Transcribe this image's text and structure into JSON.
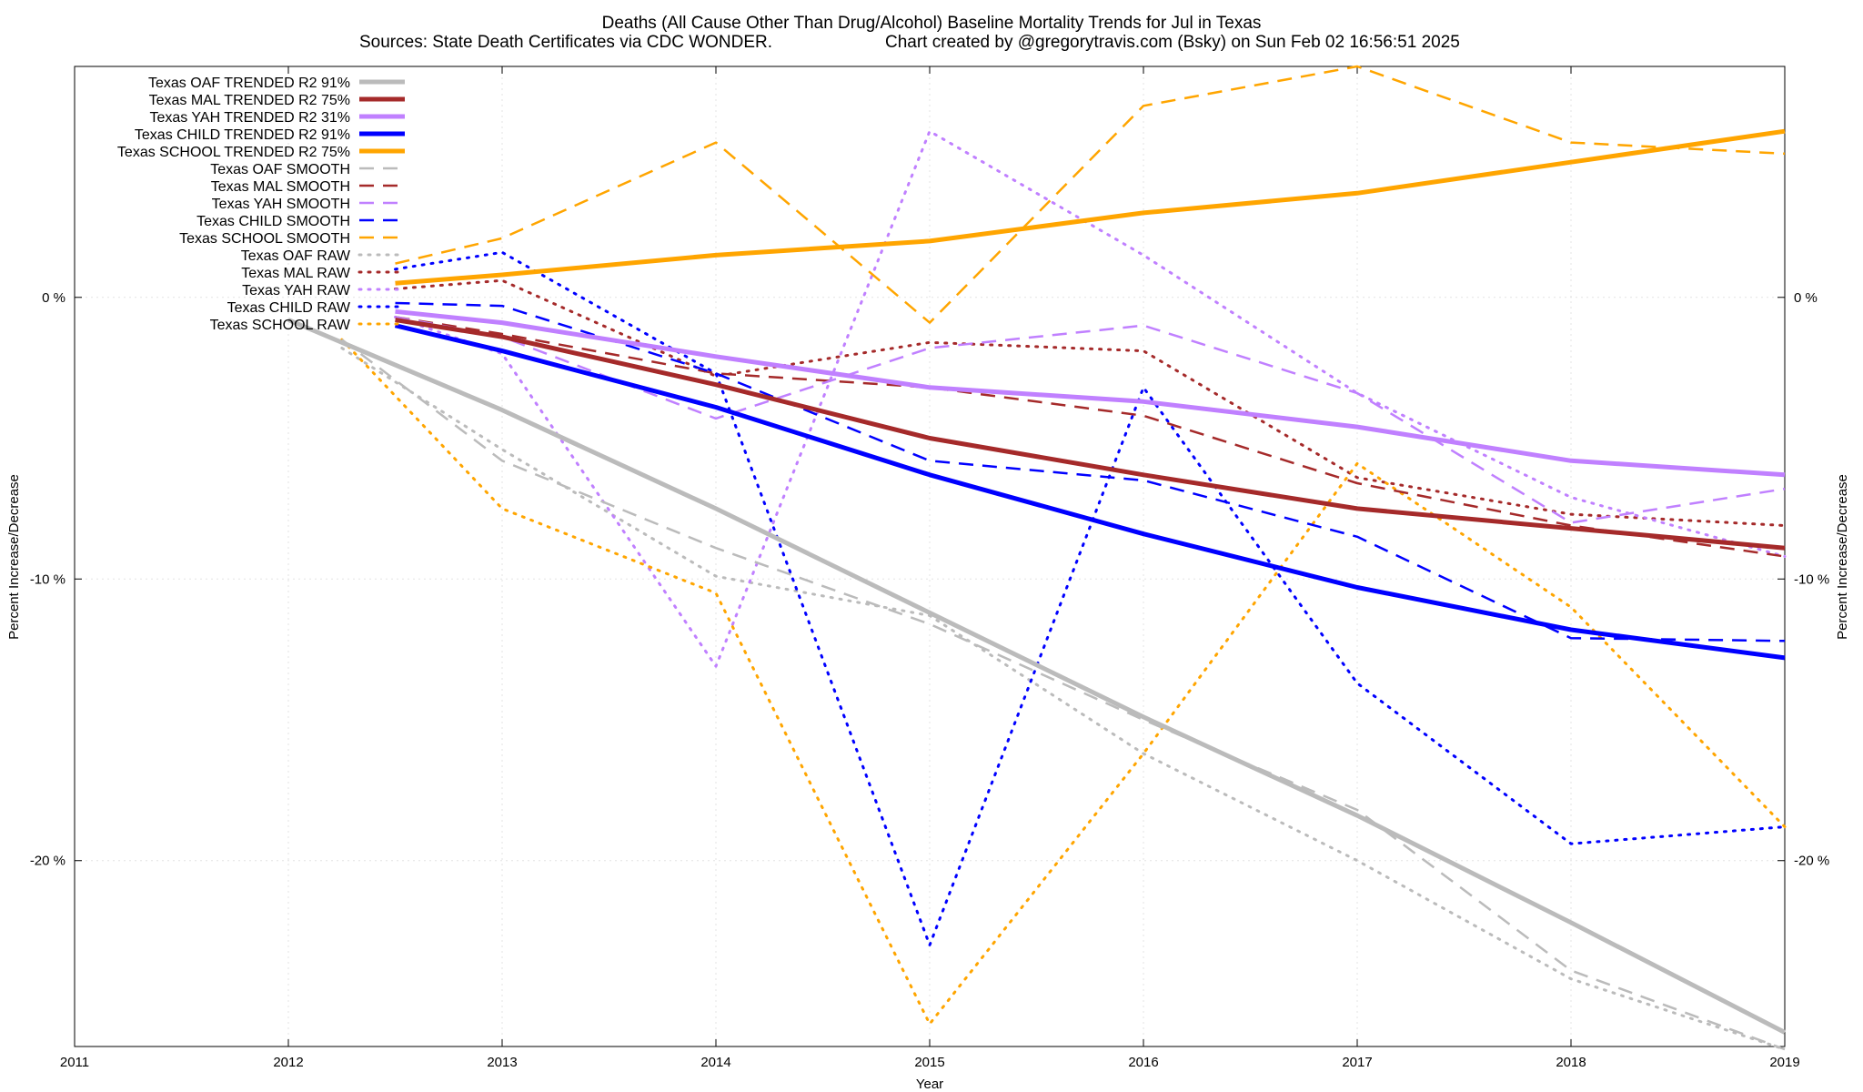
{
  "chart_data": {
    "type": "line",
    "title": "Deaths (All Cause Other Than Drug/Alcohol)  Baseline Mortality Trends for Jul in Texas",
    "subtitle_left": "Sources: State Death Certificates via CDC WONDER.",
    "subtitle_right": "Chart created by @gregorytravis.com (Bsky) on Sun Feb 02 16:56:51 2025",
    "xlabel": "Year",
    "ylabel_left": "Percent Increase/Decrease",
    "ylabel_right": "Percent Increase/Decrease",
    "xlim": [
      2011,
      2019
    ],
    "ylim": [
      -26.6,
      8.2
    ],
    "x_ticks": [
      2011,
      2012,
      2013,
      2014,
      2015,
      2016,
      2017,
      2018,
      2019
    ],
    "x_tick_labels": [
      "2011",
      "2012",
      "2013",
      "2014",
      "2015",
      "2016",
      "2017",
      "2018",
      "2019"
    ],
    "y_ticks": [
      0,
      -10,
      -20
    ],
    "y_tick_labels": [
      "0 %",
      "-10 %",
      "-20 %"
    ],
    "grid": true,
    "legend_position": "top-left",
    "colors": {
      "OAF": "#bbbbbb",
      "MAL": "#a52a2a",
      "YAH": "#c080ff",
      "CHILD": "#0000ff",
      "SCHOOL": "#ffa500"
    },
    "series": [
      {
        "name": "Texas OAF TRENDED R2  91%",
        "group": "OAF",
        "style": "trend",
        "x": [
          2012,
          2013,
          2014,
          2015,
          2016,
          2017,
          2018,
          2019
        ],
        "y": [
          -0.8,
          -4.0,
          -7.5,
          -11.2,
          -14.9,
          -18.4,
          -22.2,
          -26.1
        ]
      },
      {
        "name": "Texas MAL TRENDED R2  75%",
        "group": "MAL",
        "style": "trend",
        "x": [
          2012.5,
          2013,
          2014,
          2015,
          2016,
          2017,
          2018,
          2019
        ],
        "y": [
          -0.8,
          -1.4,
          -3.1,
          -5.0,
          -6.3,
          -7.5,
          -8.2,
          -8.9
        ]
      },
      {
        "name": "Texas YAH TRENDED R2  31%",
        "group": "YAH",
        "style": "trend",
        "x": [
          2012.5,
          2013,
          2014,
          2015,
          2016,
          2017,
          2018,
          2019
        ],
        "y": [
          -0.5,
          -0.9,
          -2.1,
          -3.2,
          -3.7,
          -4.6,
          -5.8,
          -6.3
        ]
      },
      {
        "name": "Texas CHILD TRENDED R2  91%",
        "group": "CHILD",
        "style": "trend",
        "x": [
          2012.5,
          2013,
          2014,
          2015,
          2016,
          2017,
          2018,
          2019
        ],
        "y": [
          -1.0,
          -1.9,
          -3.9,
          -6.3,
          -8.4,
          -10.3,
          -11.8,
          -12.8
        ]
      },
      {
        "name": "Texas SCHOOL TRENDED R2  75%",
        "group": "SCHOOL",
        "style": "trend",
        "x": [
          2012.5,
          2013,
          2014,
          2015,
          2016,
          2017,
          2018,
          2019
        ],
        "y": [
          0.5,
          0.8,
          1.5,
          2.0,
          3.0,
          3.7,
          4.8,
          5.9
        ]
      },
      {
        "name": "Texas OAF SMOOTH",
        "group": "OAF",
        "style": "smooth",
        "x": [
          2012.25,
          2013,
          2014,
          2015,
          2016,
          2017,
          2018,
          2019
        ],
        "y": [
          -1.5,
          -5.8,
          -8.9,
          -11.6,
          -15.0,
          -18.2,
          -23.9,
          -26.7
        ]
      },
      {
        "name": "Texas MAL SMOOTH",
        "group": "MAL",
        "style": "smooth",
        "x": [
          2012.5,
          2013,
          2014,
          2015,
          2016,
          2017,
          2018,
          2019
        ],
        "y": [
          -0.7,
          -1.3,
          -2.7,
          -3.2,
          -4.2,
          -6.6,
          -8.1,
          -9.2
        ]
      },
      {
        "name": "Texas YAH SMOOTH",
        "group": "YAH",
        "style": "smooth",
        "x": [
          2012.5,
          2013,
          2014,
          2015,
          2016,
          2017,
          2018,
          2019
        ],
        "y": [
          -0.7,
          -1.4,
          -4.3,
          -1.8,
          -1.0,
          -3.4,
          -8.0,
          -6.8
        ]
      },
      {
        "name": "Texas CHILD SMOOTH",
        "group": "CHILD",
        "style": "smooth",
        "x": [
          2012.5,
          2013,
          2014,
          2015,
          2016,
          2017,
          2018,
          2019
        ],
        "y": [
          -0.2,
          -0.3,
          -2.7,
          -5.8,
          -6.5,
          -8.5,
          -12.1,
          -12.2
        ]
      },
      {
        "name": "Texas SCHOOL SMOOTH",
        "group": "SCHOOL",
        "style": "smooth",
        "x": [
          2012.5,
          2013,
          2014,
          2015,
          2016,
          2017,
          2018,
          2019
        ],
        "y": [
          1.2,
          2.1,
          5.5,
          -0.9,
          6.8,
          8.2,
          5.5,
          5.1
        ]
      },
      {
        "name": "Texas OAF RAW",
        "group": "OAF",
        "style": "raw",
        "x": [
          2012.25,
          2013,
          2014,
          2015,
          2016,
          2017,
          2018,
          2019
        ],
        "y": [
          -1.8,
          -5.4,
          -9.9,
          -11.3,
          -16.2,
          -20.0,
          -24.2,
          -26.7
        ]
      },
      {
        "name": "Texas MAL RAW",
        "group": "MAL",
        "style": "raw",
        "x": [
          2012.5,
          2013,
          2014,
          2015,
          2016,
          2017,
          2018,
          2019
        ],
        "y": [
          0.3,
          0.6,
          -2.8,
          -1.6,
          -1.9,
          -6.4,
          -7.7,
          -8.1
        ]
      },
      {
        "name": "Texas YAH RAW",
        "group": "YAH",
        "style": "raw",
        "x": [
          2012.5,
          2013,
          2014,
          2015,
          2016,
          2017,
          2018,
          2019
        ],
        "y": [
          -0.7,
          -2.0,
          -13.1,
          5.9,
          1.5,
          -3.4,
          -7.1,
          -9.2
        ]
      },
      {
        "name": "Texas CHILD RAW",
        "group": "CHILD",
        "style": "raw",
        "x": [
          2012.5,
          2013,
          2014,
          2015,
          2016,
          2017,
          2018,
          2019
        ],
        "y": [
          1.0,
          1.6,
          -2.7,
          -23.0,
          -3.2,
          -13.7,
          -19.4,
          -18.8
        ]
      },
      {
        "name": "Texas SCHOOL RAW",
        "group": "SCHOOL",
        "style": "raw",
        "x": [
          2012.25,
          2013,
          2014,
          2015,
          2016,
          2017,
          2018,
          2019
        ],
        "y": [
          -1.5,
          -7.5,
          -10.5,
          -25.8,
          -16.2,
          -5.9,
          -11.0,
          -18.8
        ]
      }
    ]
  }
}
